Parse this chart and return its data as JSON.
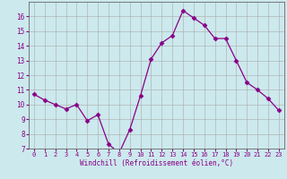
{
  "x": [
    0,
    1,
    2,
    3,
    4,
    5,
    6,
    7,
    8,
    9,
    10,
    11,
    12,
    13,
    14,
    15,
    16,
    17,
    18,
    19,
    20,
    21,
    22,
    23
  ],
  "y": [
    10.7,
    10.3,
    10.0,
    9.7,
    10.0,
    8.9,
    9.3,
    7.3,
    6.7,
    8.3,
    10.6,
    13.1,
    14.2,
    14.7,
    16.4,
    15.9,
    15.4,
    14.5,
    14.5,
    13.0,
    11.5,
    11.0,
    10.4,
    9.6
  ],
  "line_color": "#880088",
  "marker": "D",
  "marker_size": 2.5,
  "xlabel": "Windchill (Refroidissement éolien,°C)",
  "ylabel": "",
  "title": "",
  "xlim": [
    -0.5,
    23.5
  ],
  "ylim": [
    7,
    17
  ],
  "yticks": [
    7,
    8,
    9,
    10,
    11,
    12,
    13,
    14,
    15,
    16
  ],
  "xticks": [
    0,
    1,
    2,
    3,
    4,
    5,
    6,
    7,
    8,
    9,
    10,
    11,
    12,
    13,
    14,
    15,
    16,
    17,
    18,
    19,
    20,
    21,
    22,
    23
  ],
  "bg_color": "#cce9ed",
  "grid_color": "#aaaaaa",
  "tick_label_color": "#880088",
  "xlabel_color": "#880088",
  "font": "monospace"
}
